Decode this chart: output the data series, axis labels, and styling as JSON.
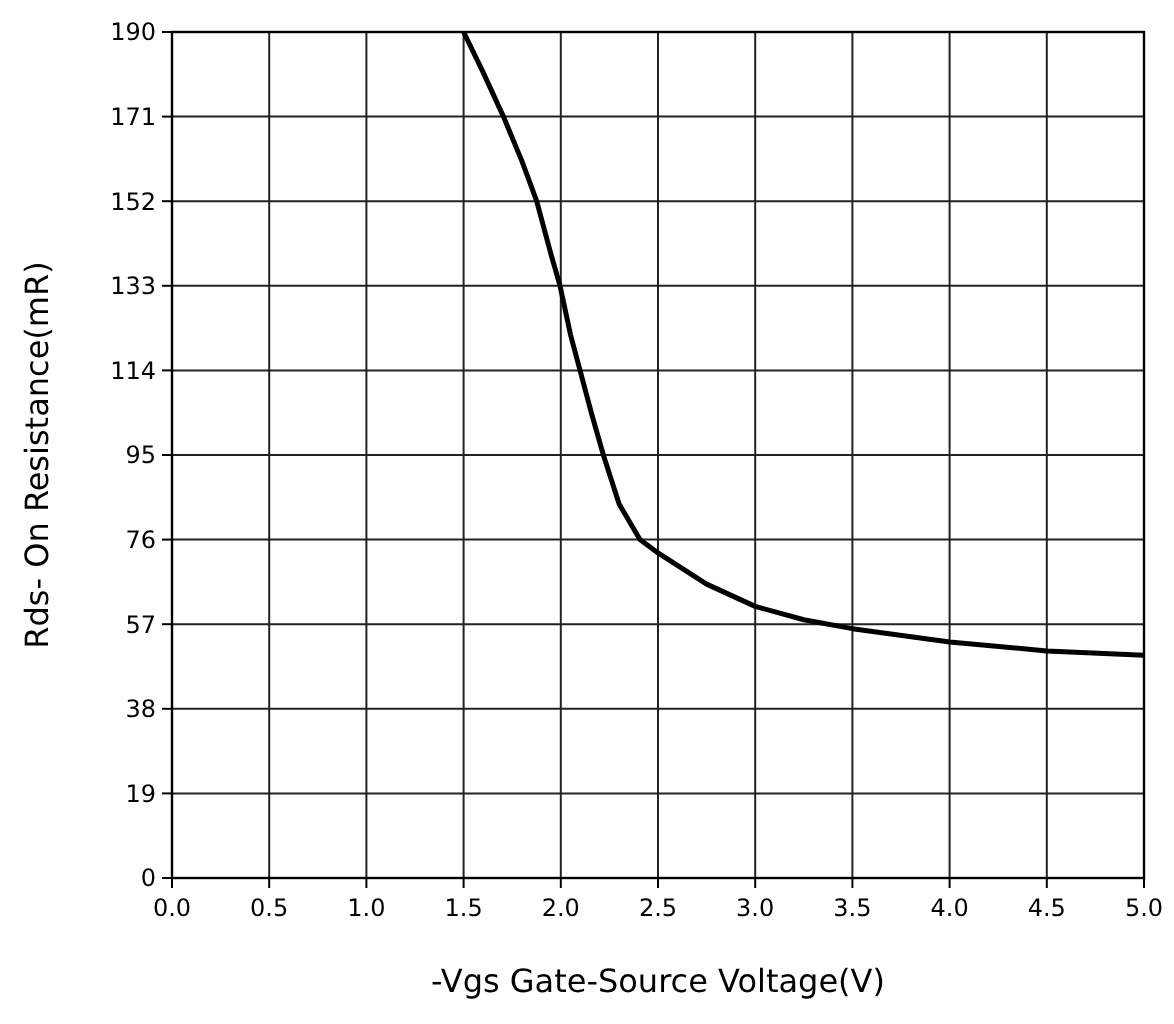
{
  "chart_data": {
    "type": "line",
    "xlabel": "-Vgs Gate-Source Voltage(V)",
    "ylabel": "Rds- On Resistance(mR)",
    "xlim": [
      0,
      5
    ],
    "xticks": [
      {
        "value": 0,
        "label": "0.0"
      },
      {
        "value": 0.5,
        "label": "0.5"
      },
      {
        "value": 1,
        "label": "1.0"
      },
      {
        "value": 1.5,
        "label": "1.5"
      },
      {
        "value": 2,
        "label": "2.0"
      },
      {
        "value": 2.5,
        "label": "2.5"
      },
      {
        "value": 3,
        "label": "3.0"
      },
      {
        "value": 3.5,
        "label": "3.5"
      },
      {
        "value": 4,
        "label": "4.0"
      },
      {
        "value": 4.5,
        "label": "4.5"
      },
      {
        "value": 5,
        "label": "5.0"
      }
    ],
    "ylim": [
      0,
      190
    ],
    "yticks": [
      0,
      19,
      38,
      57,
      76,
      95,
      114,
      133,
      152,
      171,
      190
    ],
    "grid": true,
    "marker": "none",
    "line_style": "solid",
    "series": [
      {
        "color": "#000000",
        "x": [
          1.5,
          1.6,
          1.705,
          1.8,
          1.876,
          1.95,
          1.996,
          2.05,
          2.099,
          2.16,
          2.219,
          2.3,
          2.407,
          2.5,
          2.75,
          3.0,
          3.25,
          3.5,
          4.0,
          4.5,
          5.0
        ],
        "values": [
          190,
          181,
          171,
          161,
          152,
          140,
          133,
          122,
          114,
          104,
          95,
          84,
          76,
          73,
          66,
          61,
          58,
          56,
          53,
          51,
          50
        ]
      }
    ]
  }
}
